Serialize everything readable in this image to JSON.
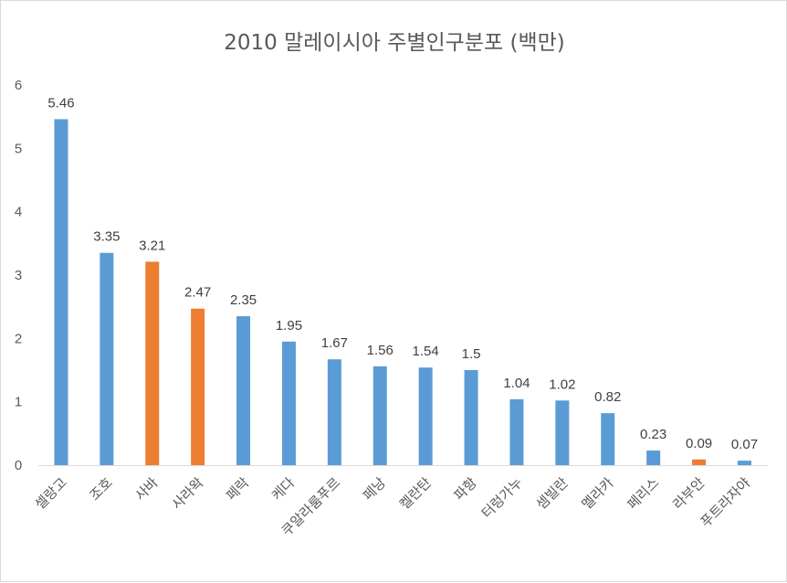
{
  "chart_data": {
    "type": "bar",
    "title": "2010 말레이시아 주별인구분포 (백만)",
    "categories": [
      "셀랑고",
      "조호",
      "사바",
      "사라왁",
      "페락",
      "케다",
      "쿠알라룸푸르",
      "페낭",
      "켈란탄",
      "파항",
      "터렁가누",
      "셈빌란",
      "멜라카",
      "페리스",
      "라부안",
      "푸트라자야"
    ],
    "values": [
      5.46,
      3.35,
      3.21,
      2.47,
      2.35,
      1.95,
      1.67,
      1.56,
      1.54,
      1.5,
      1.04,
      1.02,
      0.82,
      0.23,
      0.09,
      0.07
    ],
    "value_labels": [
      "5.46",
      "3.35",
      "3.21",
      "2.47",
      "2.35",
      "1.95",
      "1.67",
      "1.56",
      "1.54",
      "1.5",
      "1.04",
      "1.02",
      "0.82",
      "0.23",
      "0.09",
      "0.07"
    ],
    "highlighted": [
      "사바",
      "사라왁",
      "라부안"
    ],
    "y_ticks": [
      0,
      1,
      2,
      3,
      4,
      5,
      6
    ],
    "ylim": [
      0,
      6
    ],
    "grid": false,
    "legend": "none",
    "colors": {
      "default": "#5b9bd5",
      "highlight": "#ed7d31"
    }
  }
}
